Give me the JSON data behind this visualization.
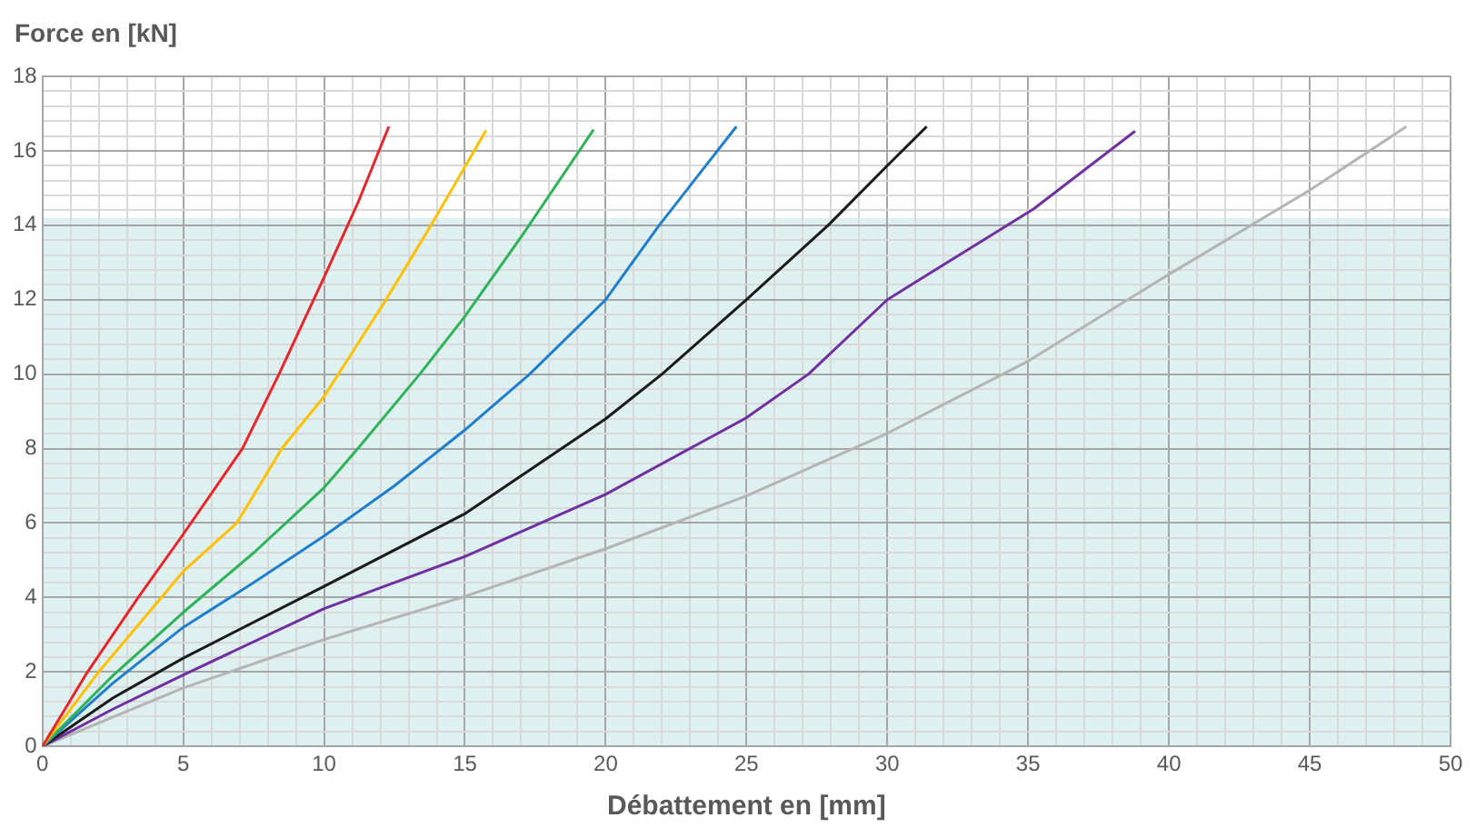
{
  "chart_data": {
    "type": "line",
    "xlabel": "Débattement en [mm]",
    "ylabel": "Force en [kN]",
    "xlim": [
      0,
      50
    ],
    "ylim": [
      0,
      18
    ],
    "xticks": [
      0,
      {
        "value": 1,
        "label": null
      },
      {
        "value": 2,
        "label": null
      },
      {
        "value": 3,
        "label": null
      },
      {
        "value": 4,
        "label": null
      },
      5,
      {
        "value": 6,
        "label": null
      },
      {
        "value": 7,
        "label": null
      },
      {
        "value": 8,
        "label": null
      },
      {
        "value": 9,
        "label": null
      },
      10,
      {
        "value": 11,
        "label": null
      },
      {
        "value": 12,
        "label": null
      },
      {
        "value": 13,
        "label": null
      },
      {
        "value": 14,
        "label": null
      },
      15,
      {
        "value": 16,
        "label": null
      },
      {
        "value": 17,
        "label": null
      },
      {
        "value": 18,
        "label": null
      },
      {
        "value": 19,
        "label": null
      },
      20,
      {
        "value": 21,
        "label": null
      },
      {
        "value": 22,
        "label": null
      },
      {
        "value": 23,
        "label": null
      },
      {
        "value": 24,
        "label": null
      },
      25,
      {
        "value": 26,
        "label": null
      },
      {
        "value": 27,
        "label": null
      },
      {
        "value": 28,
        "label": null
      },
      {
        "value": 29,
        "label": null
      },
      30,
      {
        "value": 31,
        "label": null
      },
      {
        "value": 32,
        "label": null
      },
      {
        "value": 33,
        "label": null
      },
      {
        "value": 34,
        "label": null
      },
      35,
      {
        "value": 36,
        "label": null
      },
      {
        "value": 37,
        "label": null
      },
      {
        "value": 38,
        "label": null
      },
      {
        "value": 39,
        "label": null
      },
      40,
      {
        "value": 41,
        "label": null
      },
      {
        "value": 42,
        "label": null
      },
      {
        "value": 43,
        "label": null
      },
      {
        "value": 44,
        "label": null
      },
      45,
      {
        "value": 46,
        "label": null
      },
      {
        "value": 47,
        "label": null
      },
      {
        "value": 48,
        "label": null
      },
      {
        "value": 49,
        "label": null
      },
      50
    ],
    "yticks": [
      0,
      {
        "value": 0.4,
        "label": null
      },
      {
        "value": 0.8,
        "label": null
      },
      {
        "value": 1.2,
        "label": null
      },
      {
        "value": 1.6,
        "label": null
      },
      2,
      {
        "value": 2.4,
        "label": null
      },
      {
        "value": 2.8,
        "label": null
      },
      {
        "value": 3.2,
        "label": null
      },
      {
        "value": 3.6,
        "label": null
      },
      4,
      {
        "value": 4.4,
        "label": null
      },
      {
        "value": 4.8,
        "label": null
      },
      {
        "value": 5.2,
        "label": null
      },
      {
        "value": 5.6,
        "label": null
      },
      6,
      {
        "value": 6.4,
        "label": null
      },
      {
        "value": 6.8,
        "label": null
      },
      {
        "value": 7.2,
        "label": null
      },
      {
        "value": 7.6,
        "label": null
      },
      8,
      {
        "value": 8.4,
        "label": null
      },
      {
        "value": 8.8,
        "label": null
      },
      {
        "value": 9.2,
        "label": null
      },
      {
        "value": 9.6,
        "label": null
      },
      10,
      {
        "value": 10.4,
        "label": null
      },
      {
        "value": 10.8,
        "label": null
      },
      {
        "value": 11.2,
        "label": null
      },
      {
        "value": 11.6,
        "label": null
      },
      12,
      {
        "value": 12.4,
        "label": null
      },
      {
        "value": 12.8,
        "label": null
      },
      {
        "value": 13.2,
        "label": null
      },
      {
        "value": 13.6,
        "label": null
      },
      14,
      {
        "value": 14.4,
        "label": null
      },
      {
        "value": 14.8,
        "label": null
      },
      {
        "value": 15.2,
        "label": null
      },
      {
        "value": 15.6,
        "label": null
      },
      16,
      {
        "value": 16.4,
        "label": null
      },
      {
        "value": 16.8,
        "label": null
      },
      {
        "value": 17.2,
        "label": null
      },
      {
        "value": 17.6,
        "label": null
      },
      18
    ],
    "grid": true,
    "marker": "none",
    "line_style": "solid",
    "bands": [
      {
        "axis": "y",
        "from": 0,
        "to": 14.2,
        "color": "#dff0f0"
      }
    ],
    "series": [
      {
        "color": "#e8262a",
        "x": [
          0,
          1.6,
          3.4,
          5,
          7.1,
          8.4,
          10,
          11.2,
          12.3
        ],
        "values": [
          0,
          2,
          4,
          5.7,
          8,
          10,
          12.6,
          14.6,
          16.65
        ]
      },
      {
        "color": "#ffc000",
        "x": [
          0,
          2,
          5,
          6.9,
          8.5,
          10,
          12.2,
          13.8,
          15.75
        ],
        "values": [
          0,
          2,
          4.7,
          6,
          8,
          9.4,
          12,
          14,
          16.55
        ]
      },
      {
        "color": "#2db35a",
        "x": [
          0,
          2.5,
          5,
          7.5,
          10,
          11.2,
          13.4,
          15,
          17.1,
          19.57
        ],
        "values": [
          0,
          1.9,
          3.6,
          5.2,
          6.95,
          8,
          10,
          11.55,
          13.8,
          16.57
        ]
      },
      {
        "color": "#1f7fcc",
        "x": [
          0,
          2.5,
          5,
          7.5,
          10,
          12.5,
          15,
          17.3,
          20,
          21.9,
          24.64
        ],
        "values": [
          0,
          1.7,
          3.2,
          4.4,
          5.65,
          7,
          8.5,
          10,
          12,
          14,
          16.65
        ]
      },
      {
        "color": "#1a1a1a",
        "x": [
          0,
          2.5,
          5,
          10,
          15,
          20,
          22,
          25,
          27.9,
          30,
          31.4
        ],
        "values": [
          0,
          1.3,
          2.37,
          4.3,
          6.25,
          8.8,
          10,
          12,
          14,
          15.6,
          16.65
        ]
      },
      {
        "color": "#7030a0",
        "x": [
          0,
          2.5,
          5,
          10,
          15,
          20,
          25,
          27.2,
          30,
          35.2,
          38.8
        ],
        "values": [
          0,
          1,
          1.92,
          3.7,
          5.1,
          6.77,
          8.83,
          10,
          12,
          14.44,
          16.53
        ]
      },
      {
        "color": "#b4b4b4",
        "x": [
          0,
          5,
          10,
          15,
          20,
          25,
          30,
          35,
          40,
          45,
          48.43
        ],
        "values": [
          0,
          1.57,
          2.87,
          4.03,
          5.31,
          6.73,
          8.41,
          10.35,
          12.68,
          14.94,
          16.65
        ]
      }
    ]
  }
}
